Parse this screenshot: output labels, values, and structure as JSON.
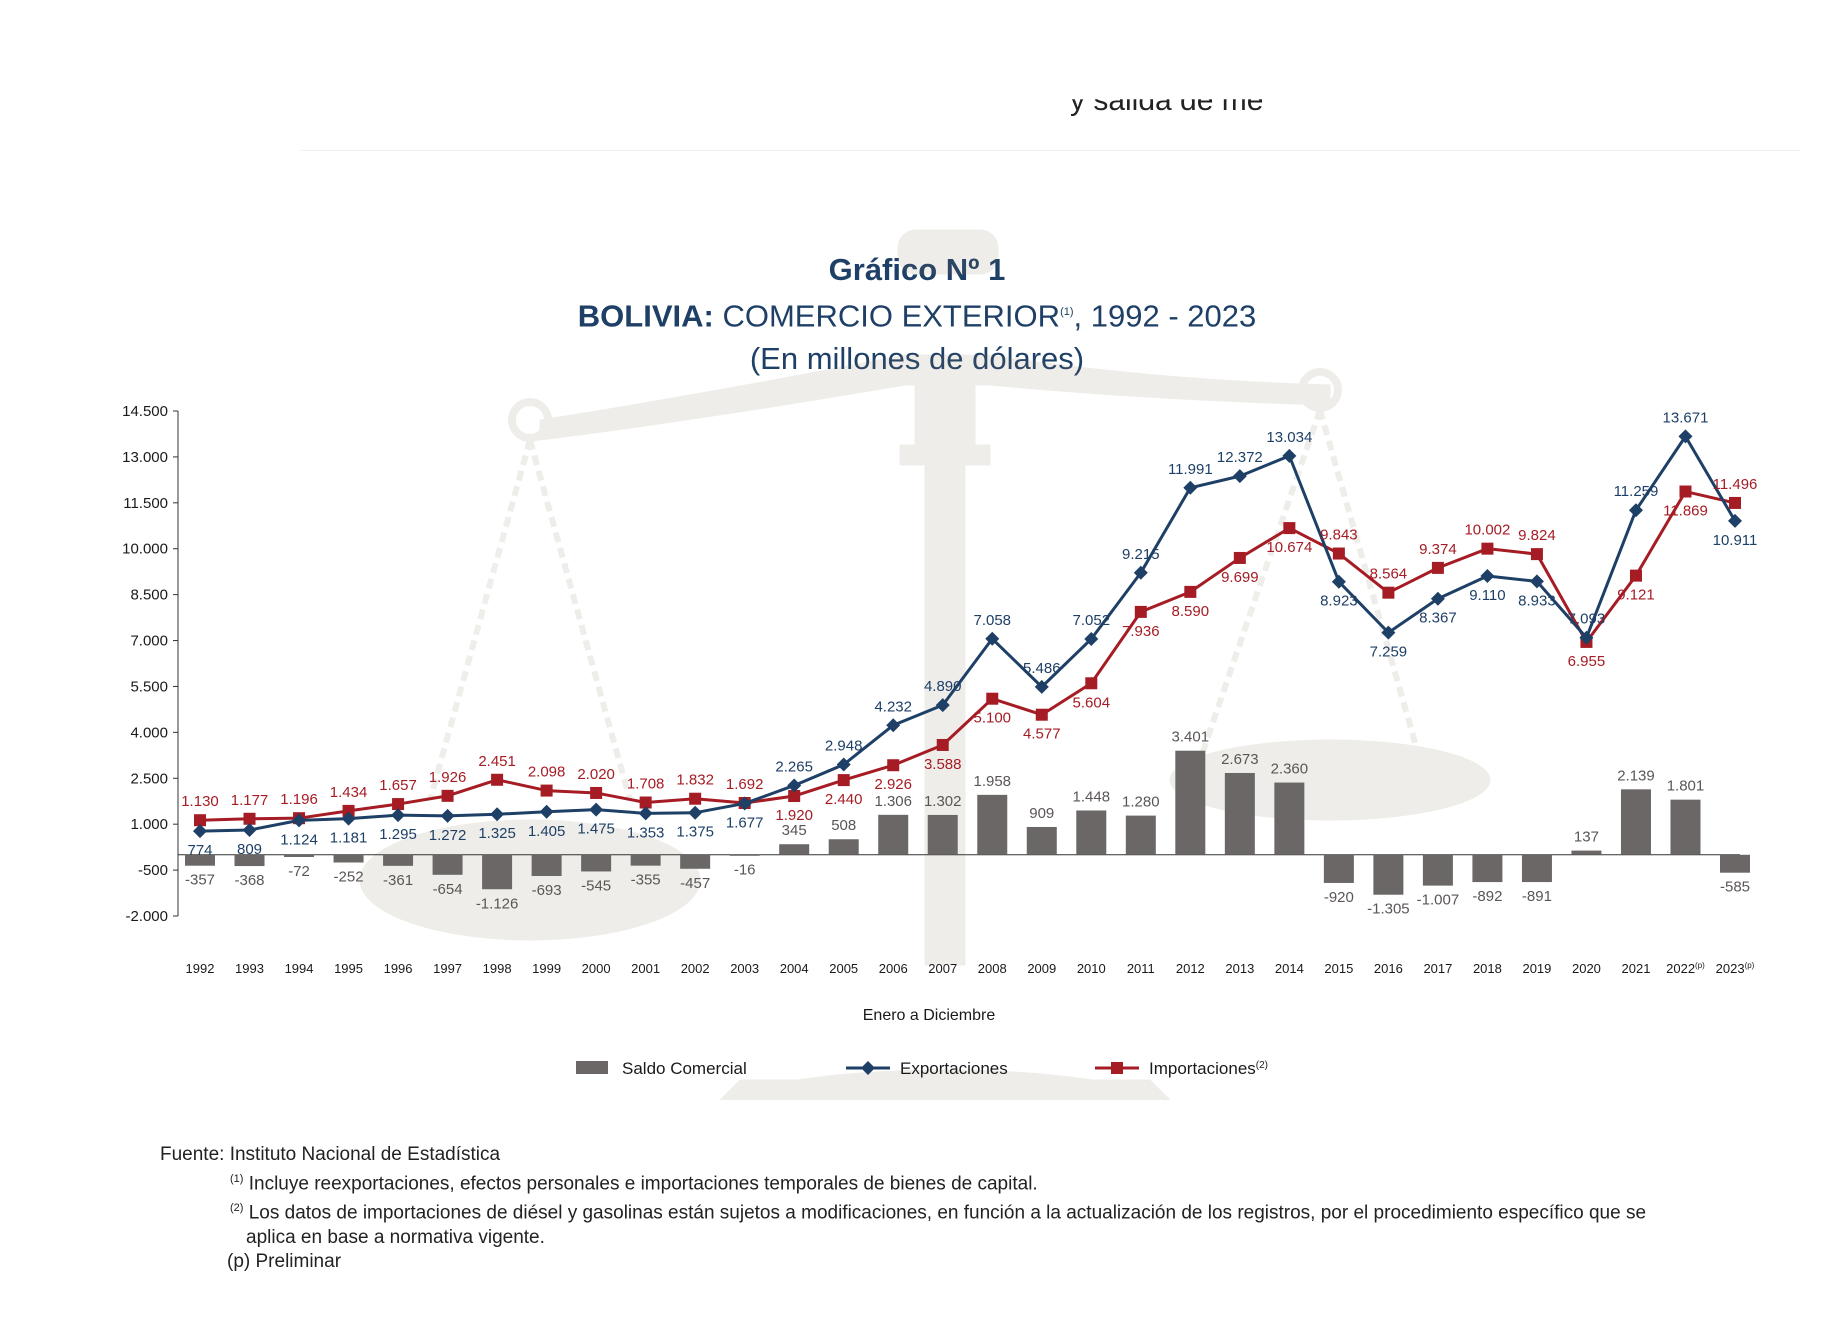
{
  "header": {
    "cut_text": "y salida de me"
  },
  "titles": {
    "figure_number": "Gráfico Nº 1",
    "country": "BOLIVIA:",
    "subject": "COMERCIO EXTERIOR",
    "subject_mark": "(1)",
    "period": ", 1992 - 2023",
    "units": "(En millones de dólares)"
  },
  "colors": {
    "balance": "#6b6766",
    "exports": "#1e3f66",
    "imports": "#a51c24",
    "axis": "#333333"
  },
  "chart_data": {
    "type": "bar+line",
    "title": "BOLIVIA: COMERCIO EXTERIOR, 1992 - 2023",
    "subtitle": "(En millones de dólares)",
    "xlabel": "Enero a Diciembre",
    "ylabel": "",
    "ylim": [
      -2000,
      14500
    ],
    "yticks": [
      -2000,
      -500,
      1000,
      2500,
      4000,
      5500,
      7000,
      8500,
      10000,
      11500,
      13000,
      14500
    ],
    "ytick_labels": [
      "-2.000",
      "-500",
      "1.000",
      "2.500",
      "4.000",
      "5.500",
      "7.000",
      "8.500",
      "10.000",
      "11.500",
      "13.000",
      "14.500"
    ],
    "categories": [
      "1992",
      "1993",
      "1994",
      "1995",
      "1996",
      "1997",
      "1998",
      "1999",
      "2000",
      "2001",
      "2002",
      "2003",
      "2004",
      "2005",
      "2006",
      "2007",
      "2008",
      "2009",
      "2010",
      "2011",
      "2012",
      "2013",
      "2014",
      "2015",
      "2016",
      "2017",
      "2018",
      "2019",
      "2020",
      "2021",
      "2022",
      "2023"
    ],
    "category_marks": [
      "",
      "",
      "",
      "",
      "",
      "",
      "",
      "",
      "",
      "",
      "",
      "",
      "",
      "",
      "",
      "",
      "",
      "",
      "",
      "",
      "",
      "",
      "",
      "",
      "",
      "",
      "",
      "",
      "",
      "",
      "(p)",
      "(p)"
    ],
    "series": [
      {
        "name": "Saldo Comercial",
        "kind": "bar",
        "values": [
          -357,
          -368,
          -72,
          -252,
          -361,
          -654,
          -1126,
          -693,
          -545,
          -355,
          -457,
          -16,
          345,
          508,
          1306,
          1302,
          1958,
          909,
          1448,
          1280,
          3401,
          2673,
          2360,
          -920,
          -1305,
          -1007,
          -892,
          -891,
          137,
          2139,
          1801,
          -585
        ],
        "labels": [
          "-357",
          "-368",
          "-72",
          "-252",
          "-361",
          "-654",
          "-1.126",
          "-693",
          "-545",
          "-355",
          "-457",
          "-16",
          "345",
          "508",
          "1.306",
          "1.302",
          "1.958",
          "909",
          "1.448",
          "1.280",
          "3.401",
          "2.673",
          "2.360",
          "-920",
          "-1.305",
          "-1.007",
          "-892",
          "-891",
          "137",
          "2.139",
          "1.801",
          "-585"
        ]
      },
      {
        "name": "Exportaciones",
        "kind": "line",
        "values": [
          774,
          809,
          1124,
          1181,
          1295,
          1272,
          1325,
          1405,
          1475,
          1353,
          1375,
          1677,
          2265,
          2948,
          4232,
          4890,
          7058,
          5486,
          7052,
          9215,
          11991,
          12372,
          13034,
          8923,
          7259,
          8367,
          9110,
          8933,
          7093,
          11259,
          13671,
          10911
        ],
        "labels": [
          "774",
          "809",
          "1.124",
          "1.181",
          "1.295",
          "1.272",
          "1.325",
          "1.405",
          "1.475",
          "1.353",
          "1.375",
          "1.677",
          "2.265",
          "2.948",
          "4.232",
          "4.890",
          "7.058",
          "5.486",
          "7.052",
          "9.215",
          "11.991",
          "12.372",
          "13.034",
          "8.923",
          "7.259",
          "8.367",
          "9.110",
          "8.933",
          "7.093",
          "11.259",
          "13.671",
          "10.911"
        ]
      },
      {
        "name": "Importaciones",
        "name_mark": "(2)",
        "kind": "line",
        "values": [
          1130,
          1177,
          1196,
          1434,
          1657,
          1926,
          2451,
          2098,
          2020,
          1708,
          1832,
          1692,
          1920,
          2440,
          2926,
          3588,
          5100,
          4577,
          5604,
          7936,
          8590,
          9699,
          10674,
          9843,
          8564,
          9374,
          10002,
          9824,
          6955,
          9121,
          11869,
          11496
        ],
        "labels": [
          "1.130",
          "1.177",
          "1.196",
          "1.434",
          "1.657",
          "1.926",
          "2.451",
          "2.098",
          "2.020",
          "1.708",
          "1.832",
          "1.692",
          "1.920",
          "2.440",
          "2.926",
          "3.588",
          "5.100",
          "4.577",
          "5.604",
          "7.936",
          "8.590",
          "9.699",
          "10.674",
          "9.843",
          "8.564",
          "9.374",
          "10.002",
          "9.824",
          "6.955",
          "9.121",
          "11.869",
          "11.496"
        ]
      }
    ],
    "legend": [
      "Saldo Comercial",
      "Exportaciones",
      "Importaciones"
    ],
    "legend_position": "bottom-center",
    "grid": false
  },
  "footnotes": {
    "source": "Fuente: Instituto Nacional de Estadística",
    "note1_mark": "(1)",
    "note1": "Incluye reexportaciones, efectos personales e importaciones temporales de bienes de capital.",
    "note2_mark": "(2)",
    "note2_line1": "Los datos de importaciones de diésel y gasolinas están sujetos a modificaciones, en función a la actualización de los registros, por el procedimiento específico que se",
    "note2_line2": "aplica en base a normativa vigente.",
    "preliminary": "(p) Preliminar"
  }
}
